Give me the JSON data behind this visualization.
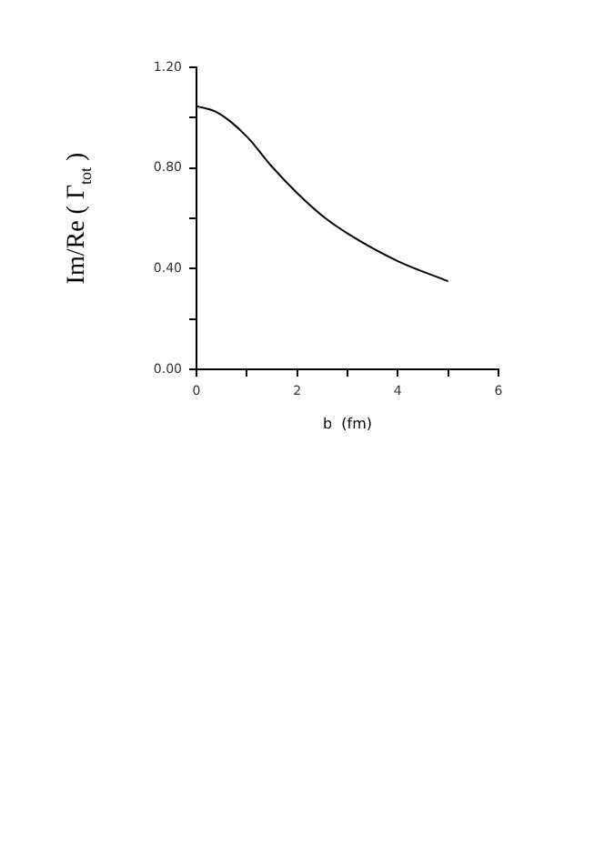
{
  "chart_data": {
    "type": "line",
    "xlabel": "b  (fm)",
    "ylabel": "Im/Re ( Γ$_{tot}$ )",
    "x": [
      0,
      0.42,
      1,
      1.5,
      2,
      2.5,
      3,
      4,
      5
    ],
    "series": [
      {
        "color": "#000000",
        "values": [
          1.046,
          1.02,
          0.925,
          0.805,
          0.7,
          0.61,
          0.54,
          0.43,
          0.35
        ]
      }
    ],
    "xlim": [
      0,
      6
    ],
    "xticks": [
      0,
      {
        "value": 1,
        "label": null
      },
      2,
      {
        "value": 3,
        "label": null
      },
      4,
      {
        "value": 5,
        "label": null
      },
      6
    ],
    "ylim": [
      0,
      1.2
    ],
    "yticks": [
      {
        "value": 0,
        "label": "0.00"
      },
      {
        "value": 0.2,
        "label": null
      },
      {
        "value": 0.4,
        "label": "0.40"
      },
      {
        "value": 0.6,
        "label": null
      },
      {
        "value": 0.8,
        "label": "0.80"
      },
      {
        "value": 1,
        "label": null
      },
      {
        "value": 1.2,
        "label": "1.20"
      }
    ],
    "grid": false,
    "legend": false,
    "marker": "none",
    "line_style": "solid"
  }
}
